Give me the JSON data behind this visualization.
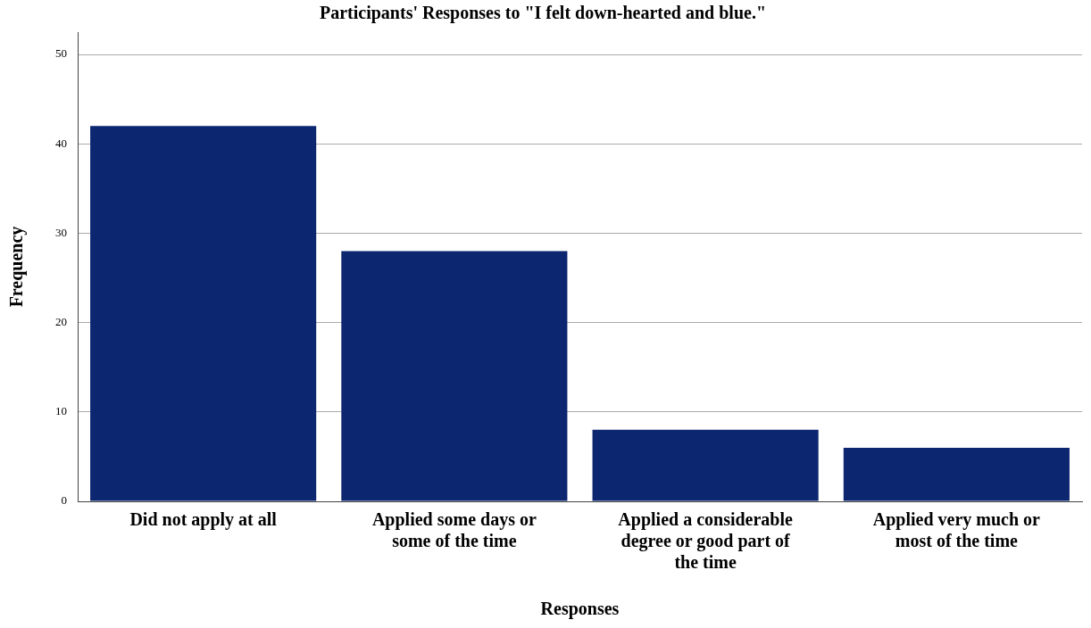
{
  "chart_data": {
    "type": "bar",
    "title": "Participants' Responses to \"I felt down-hearted and blue.\"",
    "xlabel": "Responses",
    "ylabel": "Frequency",
    "categories": [
      "Did not apply at all",
      "Applied some days or some of the time",
      "Applied a considerable degree or good part of the time",
      "Applied very much or most of the time"
    ],
    "values": [
      42,
      28,
      8,
      6
    ],
    "color": "#0c2670",
    "ylim": [
      0,
      52.5
    ],
    "yticks": [
      0,
      10,
      20,
      30,
      40,
      50
    ],
    "grid": "y",
    "legend": false
  }
}
